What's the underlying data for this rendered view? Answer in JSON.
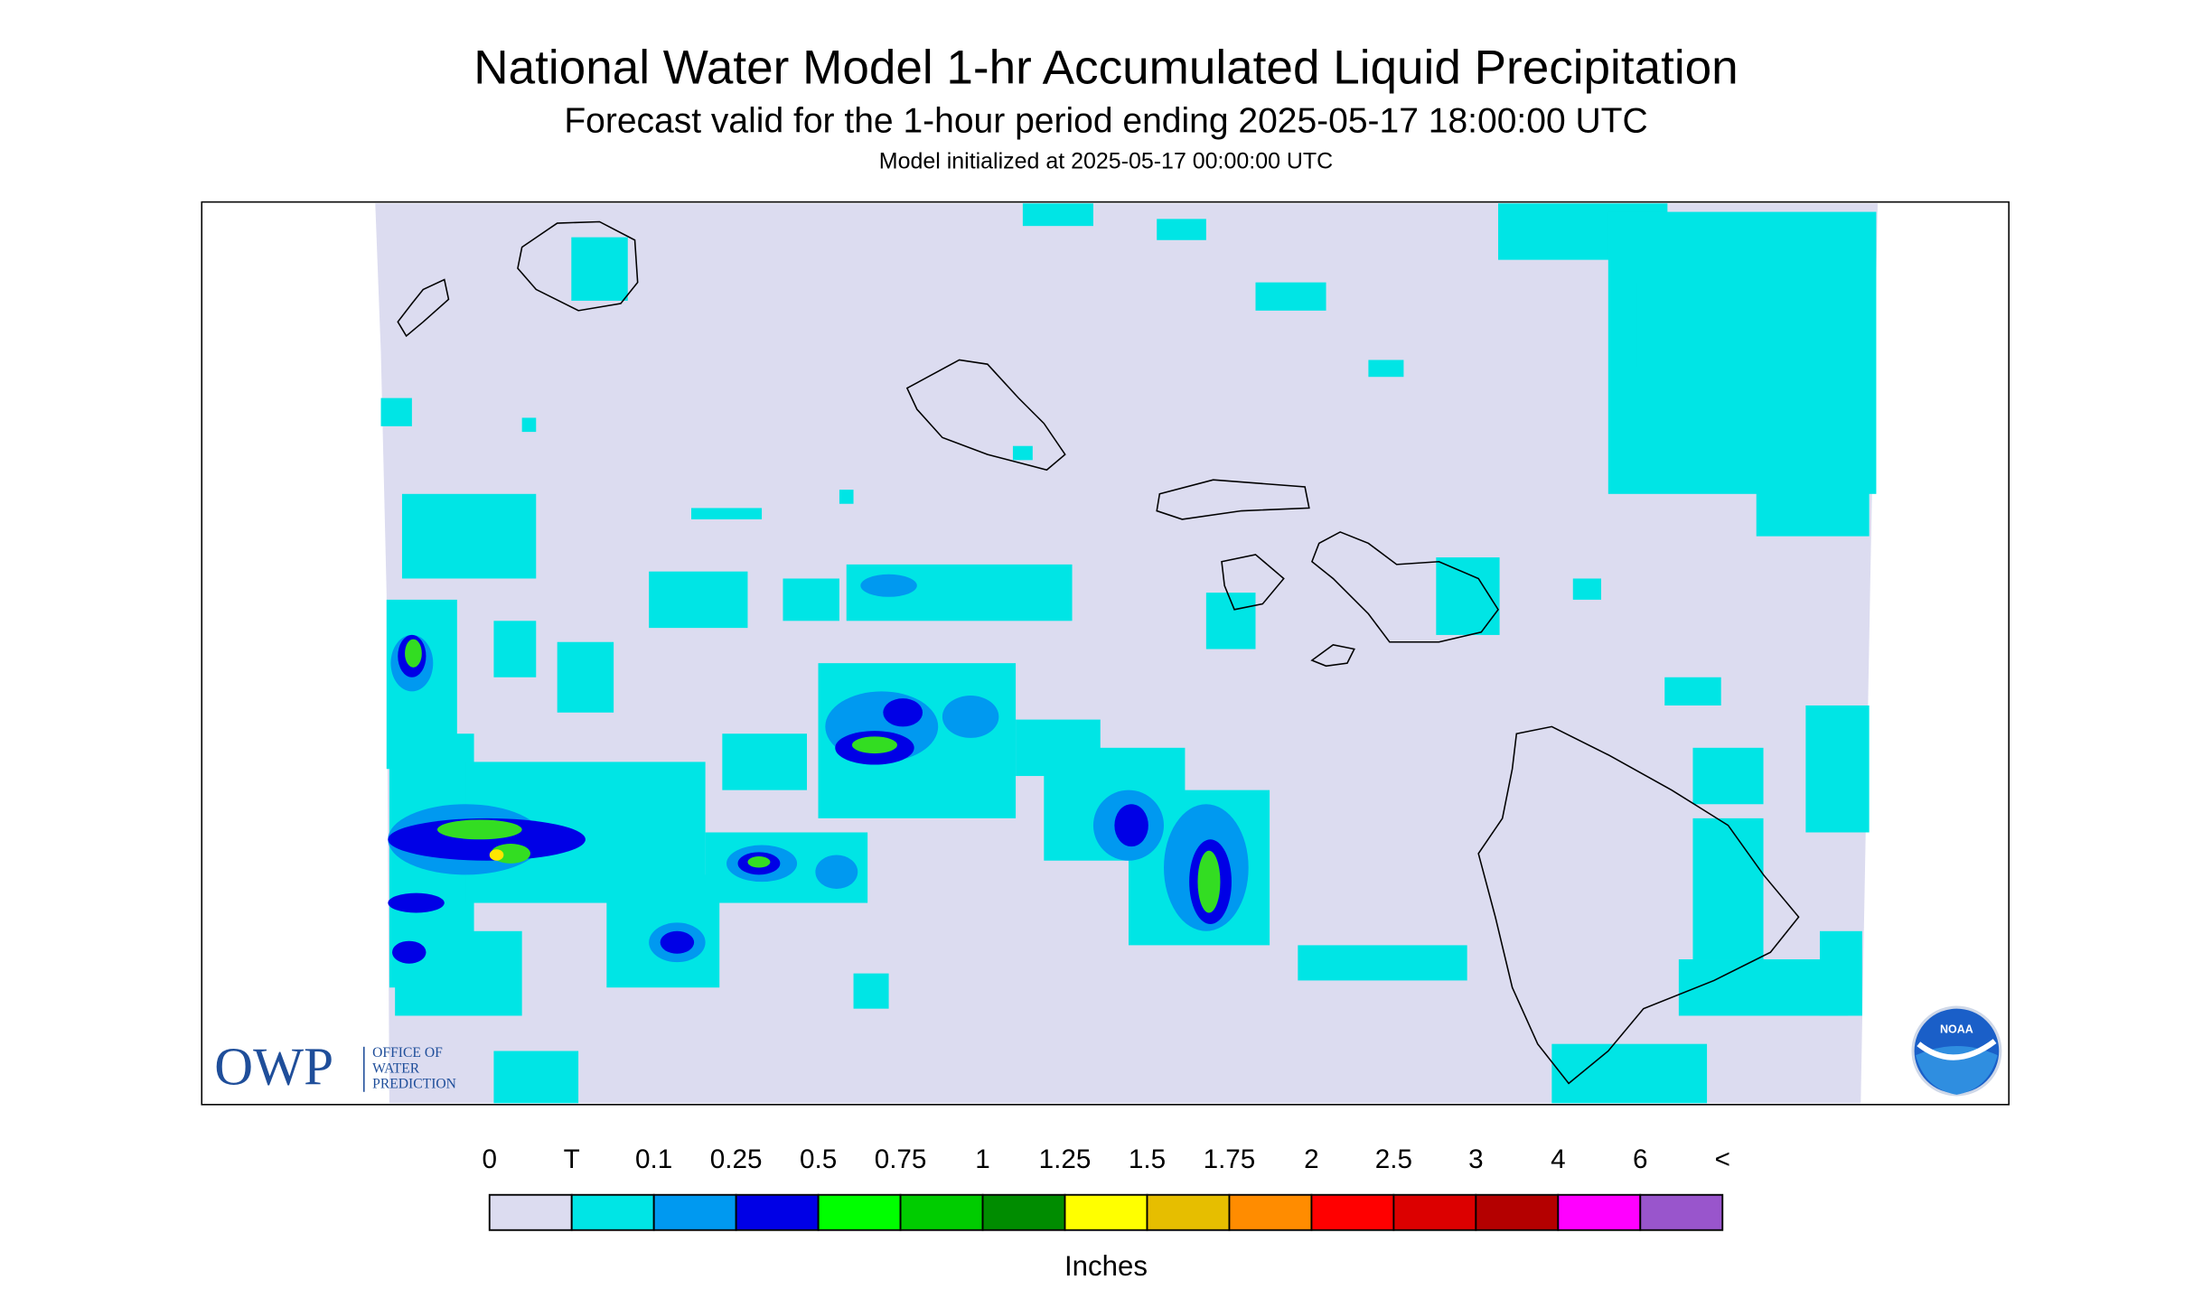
{
  "header": {
    "title": "National Water Model 1-hr Accumulated Liquid Precipitation",
    "subtitle": "Forecast valid for the 1-hour period ending 2025-05-17 18:00:00 UTC",
    "init": "Model initialized at 2025-05-17 00:00:00 UTC"
  },
  "legend": {
    "labels": [
      "0",
      "T",
      "0.1",
      "0.25",
      "0.5",
      "0.75",
      "1",
      "1.25",
      "1.5",
      "1.75",
      "2",
      "2.5",
      "3",
      "4",
      "6",
      "<"
    ],
    "colors": [
      "#dcdcf0",
      "#00e5e5",
      "#0099f0",
      "#0000e6",
      "#00ff00",
      "#00cc00",
      "#008c00",
      "#ffff00",
      "#e6be00",
      "#ff8c00",
      "#ff0000",
      "#dc0000",
      "#b40000",
      "#ff00ff",
      "#9955cc"
    ],
    "unit": "Inches"
  },
  "logos": {
    "owp": "OWP",
    "owp_lines": [
      "OFFICE OF",
      "WATER",
      "PREDICTION"
    ],
    "noaa": "NOAA"
  }
}
